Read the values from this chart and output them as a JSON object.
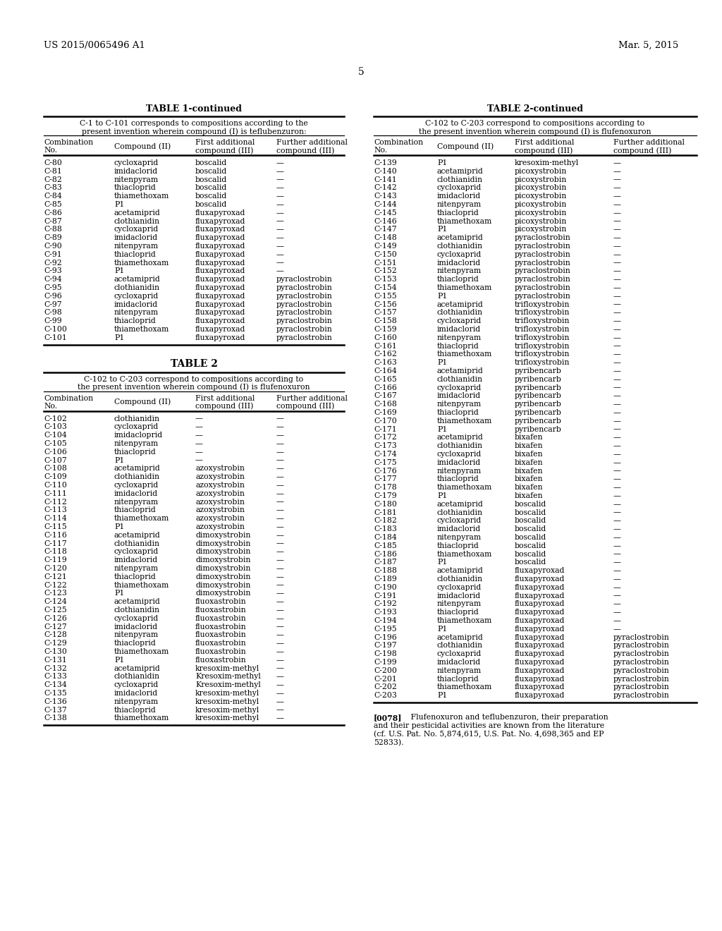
{
  "header_left": "US 2015/0065496 A1",
  "header_right": "Mar. 5, 2015",
  "page_num": "5",
  "table1_title": "TABLE 1-continued",
  "table1_subtitle1": "C-1 to C-101 corresponds to compositions according to the",
  "table1_subtitle2": "present invention wherein compound (I) is teflubenzuron:",
  "table2cont_title": "TABLE 2-continued",
  "table2cont_subtitle1": "C-102 to C-203 correspond to compositions according to",
  "table2cont_subtitle2": "the present invention wherein compound (I) is flufenoxuron",
  "col_headers": [
    "Combination",
    "No.",
    "Compound (II)",
    "First additional",
    "compound (III)",
    "Further additional",
    "compound (III)"
  ],
  "table2_title": "TABLE 2",
  "table2_subtitle1": "C-102 to C-203 correspond to compositions according to",
  "table2_subtitle2": "the present invention wherein compound (I) is flufenoxuron",
  "table1_data": [
    [
      "C-80",
      "cycloxaprid",
      "boscalid",
      "—"
    ],
    [
      "C-81",
      "imidaclorid",
      "boscalid",
      "—"
    ],
    [
      "C-82",
      "nitenpyram",
      "boscalid",
      "—"
    ],
    [
      "C-83",
      "thiacloprid",
      "boscalid",
      "—"
    ],
    [
      "C-84",
      "thiamethoxam",
      "boscalid",
      "—"
    ],
    [
      "C-85",
      "P1",
      "boscalid",
      "—"
    ],
    [
      "C-86",
      "acetamiprid",
      "fluxapyroxad",
      "—"
    ],
    [
      "C-87",
      "clothianidin",
      "fluxapyroxad",
      "—"
    ],
    [
      "C-88",
      "cycloxaprid",
      "fluxapyroxad",
      "—"
    ],
    [
      "C-89",
      "imidaclorid",
      "fluxapyroxad",
      "—"
    ],
    [
      "C-90",
      "nitenpyram",
      "fluxapyroxad",
      "—"
    ],
    [
      "C-91",
      "thiacloprid",
      "fluxapyroxad",
      "—"
    ],
    [
      "C-92",
      "thiamethoxam",
      "fluxapyroxad",
      "—"
    ],
    [
      "C-93",
      "P1",
      "fluxapyroxad",
      "—"
    ],
    [
      "C-94",
      "acetamiprid",
      "fluxapyroxad",
      "pyraclostrobin"
    ],
    [
      "C-95",
      "clothianidin",
      "fluxapyroxad",
      "pyraclostrobin"
    ],
    [
      "C-96",
      "cycloxaprid",
      "fluxapyroxad",
      "pyraclostrobin"
    ],
    [
      "C-97",
      "imidaclorid",
      "fluxapyroxad",
      "pyraclostrobin"
    ],
    [
      "C-98",
      "nitenpyram",
      "fluxapyroxad",
      "pyraclostrobin"
    ],
    [
      "C-99",
      "thiacloprid",
      "fluxapyroxad",
      "pyraclostrobin"
    ],
    [
      "C-100",
      "thiamethoxam",
      "fluxapyroxad",
      "pyraclostrobin"
    ],
    [
      "C-101",
      "P1",
      "fluxapyroxad",
      "pyraclostrobin"
    ]
  ],
  "table2_data": [
    [
      "C-102",
      "clothianidin",
      "—",
      "—"
    ],
    [
      "C-103",
      "cycloxaprid",
      "—",
      "—"
    ],
    [
      "C-104",
      "imidacloprid",
      "—",
      "—"
    ],
    [
      "C-105",
      "nitenpyram",
      "—",
      "—"
    ],
    [
      "C-106",
      "thiacloprid",
      "—",
      "—"
    ],
    [
      "C-107",
      "P1",
      "—",
      "—"
    ],
    [
      "C-108",
      "acetamiprid",
      "azoxystrobin",
      "—"
    ],
    [
      "C-109",
      "clothianidin",
      "azoxystrobin",
      "—"
    ],
    [
      "C-110",
      "cycloxaprid",
      "azoxystrobin",
      "—"
    ],
    [
      "C-111",
      "imidaclorid",
      "azoxystrobin",
      "—"
    ],
    [
      "C-112",
      "nitenpyram",
      "azoxystrobin",
      "—"
    ],
    [
      "C-113",
      "thiacloprid",
      "azoxystrobin",
      "—"
    ],
    [
      "C-114",
      "thiamethoxam",
      "azoxystrobin",
      "—"
    ],
    [
      "C-115",
      "P1",
      "azoxystrobin",
      "—"
    ],
    [
      "C-116",
      "acetamiprid",
      "dimoxystrobin",
      "—"
    ],
    [
      "C-117",
      "clothianidin",
      "dimoxystrobin",
      "—"
    ],
    [
      "C-118",
      "cycloxaprid",
      "dimoxystrobin",
      "—"
    ],
    [
      "C-119",
      "imidaclorid",
      "dimoxystrobin",
      "—"
    ],
    [
      "C-120",
      "nitenpyram",
      "dimoxystrobin",
      "—"
    ],
    [
      "C-121",
      "thiacloprid",
      "dimoxystrobin",
      "—"
    ],
    [
      "C-122",
      "thiamethoxam",
      "dimoxystrobin",
      "—"
    ],
    [
      "C-123",
      "P1",
      "dimoxystrobin",
      "—"
    ],
    [
      "C-124",
      "acetamiprid",
      "fluoxastrobin",
      "—"
    ],
    [
      "C-125",
      "clothianidin",
      "fluoxastrobin",
      "—"
    ],
    [
      "C-126",
      "cycloxaprid",
      "fluoxastrobin",
      "—"
    ],
    [
      "C-127",
      "imidaclorid",
      "fluoxastrobin",
      "—"
    ],
    [
      "C-128",
      "nitenpyram",
      "fluoxastrobin",
      "—"
    ],
    [
      "C-129",
      "thiacloprid",
      "fluoxastrobin",
      "—"
    ],
    [
      "C-130",
      "thiamethoxam",
      "fluoxastrobin",
      "—"
    ],
    [
      "C-131",
      "P1",
      "fluoxastrobin",
      "—"
    ],
    [
      "C-132",
      "acetamiprid",
      "kresoxim-methyl",
      "—"
    ],
    [
      "C-133",
      "clothianidin",
      "Kresoxim-methyl",
      "—"
    ],
    [
      "C-134",
      "cycloxaprid",
      "Kresoxim-methyl",
      "—"
    ],
    [
      "C-135",
      "imidaclorid",
      "kresoxim-methyl",
      "—"
    ],
    [
      "C-136",
      "nitenpyram",
      "kresoxim-methyl",
      "—"
    ],
    [
      "C-137",
      "thiacloprid",
      "kresoxim-methyl",
      "—"
    ],
    [
      "C-138",
      "thiamethoxam",
      "kresoxim-methyl",
      "—"
    ]
  ],
  "table2cont_data": [
    [
      "C-139",
      "P1",
      "kresoxim-methyl",
      "—"
    ],
    [
      "C-140",
      "acetamiprid",
      "picoxystrobin",
      "—"
    ],
    [
      "C-141",
      "clothianidin",
      "picoxystrobin",
      "—"
    ],
    [
      "C-142",
      "cycloxaprid",
      "picoxystrobin",
      "—"
    ],
    [
      "C-143",
      "imidaclorid",
      "picoxystrobin",
      "—"
    ],
    [
      "C-144",
      "nitenpyram",
      "picoxystrobin",
      "—"
    ],
    [
      "C-145",
      "thiacloprid",
      "picoxystrobin",
      "—"
    ],
    [
      "C-146",
      "thiamethoxam",
      "picoxystrobin",
      "—"
    ],
    [
      "C-147",
      "P1",
      "picoxystrobin",
      "—"
    ],
    [
      "C-148",
      "acetamiprid",
      "pyraclostrobin",
      "—"
    ],
    [
      "C-149",
      "clothianidin",
      "pyraclostrobin",
      "—"
    ],
    [
      "C-150",
      "cycloxaprid",
      "pyraclostrobin",
      "—"
    ],
    [
      "C-151",
      "imidaclorid",
      "pyraclostrobin",
      "—"
    ],
    [
      "C-152",
      "nitenpyram",
      "pyraclostrobin",
      "—"
    ],
    [
      "C-153",
      "thiacloprid",
      "pyraclostrobin",
      "—"
    ],
    [
      "C-154",
      "thiamethoxam",
      "pyraclostrobin",
      "—"
    ],
    [
      "C-155",
      "P1",
      "pyraclostrobin",
      "—"
    ],
    [
      "C-156",
      "acetamiprid",
      "trifloxystrobin",
      "—"
    ],
    [
      "C-157",
      "clothianidin",
      "trifloxystrobin",
      "—"
    ],
    [
      "C-158",
      "cycloxaprid",
      "trifloxystrobin",
      "—"
    ],
    [
      "C-159",
      "imidaclorid",
      "trifloxystrobin",
      "—"
    ],
    [
      "C-160",
      "nitenpyram",
      "trifloxystrobin",
      "—"
    ],
    [
      "C-161",
      "thiacloprid",
      "trifloxystrobin",
      "—"
    ],
    [
      "C-162",
      "thiamethoxam",
      "trifloxystrobin",
      "—"
    ],
    [
      "C-163",
      "P1",
      "trifloxystrobin",
      "—"
    ],
    [
      "C-164",
      "acetamiprid",
      "pyribencarb",
      "—"
    ],
    [
      "C-165",
      "clothianidin",
      "pyribencarb",
      "—"
    ],
    [
      "C-166",
      "cycloxaprid",
      "pyribencarb",
      "—"
    ],
    [
      "C-167",
      "imidaclorid",
      "pyribencarb",
      "—"
    ],
    [
      "C-168",
      "nitenpyram",
      "pyribencarb",
      "—"
    ],
    [
      "C-169",
      "thiacloprid",
      "pyribencarb",
      "—"
    ],
    [
      "C-170",
      "thiamethoxam",
      "pyribencarb",
      "—"
    ],
    [
      "C-171",
      "P1",
      "pyribencarb",
      "—"
    ],
    [
      "C-172",
      "acetamiprid",
      "bixafen",
      "—"
    ],
    [
      "C-173",
      "clothianidin",
      "bixafen",
      "—"
    ],
    [
      "C-174",
      "cycloxaprid",
      "bixafen",
      "—"
    ],
    [
      "C-175",
      "imidaclorid",
      "bixafen",
      "—"
    ],
    [
      "C-176",
      "nitenpyram",
      "bixafen",
      "—"
    ],
    [
      "C-177",
      "thiacloprid",
      "bixafen",
      "—"
    ],
    [
      "C-178",
      "thiamethoxam",
      "bixafen",
      "—"
    ],
    [
      "C-179",
      "P1",
      "bixafen",
      "—"
    ],
    [
      "C-180",
      "acetamiprid",
      "boscalid",
      "—"
    ],
    [
      "C-181",
      "clothianidin",
      "boscalid",
      "—"
    ],
    [
      "C-182",
      "cycloxaprid",
      "boscalid",
      "—"
    ],
    [
      "C-183",
      "imidaclorid",
      "boscalid",
      "—"
    ],
    [
      "C-184",
      "nitenpyram",
      "boscalid",
      "—"
    ],
    [
      "C-185",
      "thiacloprid",
      "boscalid",
      "—"
    ],
    [
      "C-186",
      "thiamethoxam",
      "boscalid",
      "—"
    ],
    [
      "C-187",
      "P1",
      "boscalid",
      "—"
    ],
    [
      "C-188",
      "acetamiprid",
      "fluxapyroxad",
      "—"
    ],
    [
      "C-189",
      "clothianidin",
      "fluxapyroxad",
      "—"
    ],
    [
      "C-190",
      "cycloxaprid",
      "fluxapyroxad",
      "—"
    ],
    [
      "C-191",
      "imidaclorid",
      "fluxapyroxad",
      "—"
    ],
    [
      "C-192",
      "nitenpyram",
      "fluxapyroxad",
      "—"
    ],
    [
      "C-193",
      "thiacloprid",
      "fluxapyroxad",
      "—"
    ],
    [
      "C-194",
      "thiamethoxam",
      "fluxapyroxad",
      "—"
    ],
    [
      "C-195",
      "P1",
      "fluxapyroxad",
      "—"
    ],
    [
      "C-196",
      "acetamiprid",
      "fluxapyroxad",
      "pyraclostrobin"
    ],
    [
      "C-197",
      "clothianidin",
      "fluxapyroxad",
      "pyraclostrobin"
    ],
    [
      "C-198",
      "cycloxaprid",
      "fluxapyroxad",
      "pyraclostrobin"
    ],
    [
      "C-199",
      "imidaclorid",
      "fluxapyroxad",
      "pyraclostrobin"
    ],
    [
      "C-200",
      "nitenpyram",
      "fluxapyroxad",
      "pyraclostrobin"
    ],
    [
      "C-201",
      "thiacloprid",
      "fluxapyroxad",
      "pyraclostrobin"
    ],
    [
      "C-202",
      "thiamethoxam",
      "fluxapyroxad",
      "pyraclostrobin"
    ],
    [
      "C-203",
      "P1",
      "fluxapyroxad",
      "pyraclostrobin"
    ]
  ],
  "footnote_tag": "[0078]",
  "footnote_indent": "   Flufenoxuron and teflubenzuron, their preparation",
  "footnote_lines": [
    "and their pesticidal activities are known from the literature",
    "(cf. U.S. Pat. No. 5,874,615, U.S. Pat. No. 4,698,365 and EP",
    "52833)."
  ]
}
